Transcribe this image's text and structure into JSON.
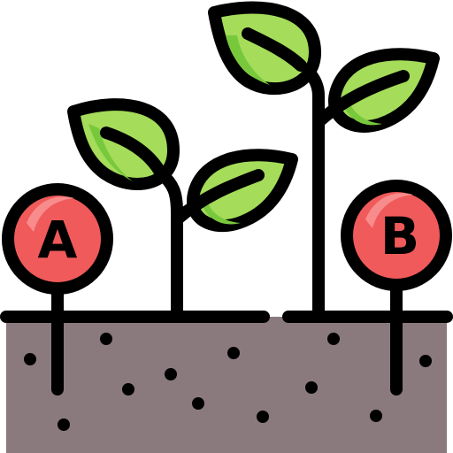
{
  "illustration": {
    "subject": "two-seedlings-comparison-icon",
    "markers": [
      {
        "label": "A"
      },
      {
        "label": "B"
      }
    ],
    "colors": {
      "outline": "#000000",
      "soil": "#8a7a7e",
      "soil_dots": "#000000",
      "leaf_dark": "#78c83c",
      "leaf_light": "#a5dc5a",
      "marker_fill": "#f05a5a",
      "marker_highlight": "#f88c8c"
    }
  }
}
